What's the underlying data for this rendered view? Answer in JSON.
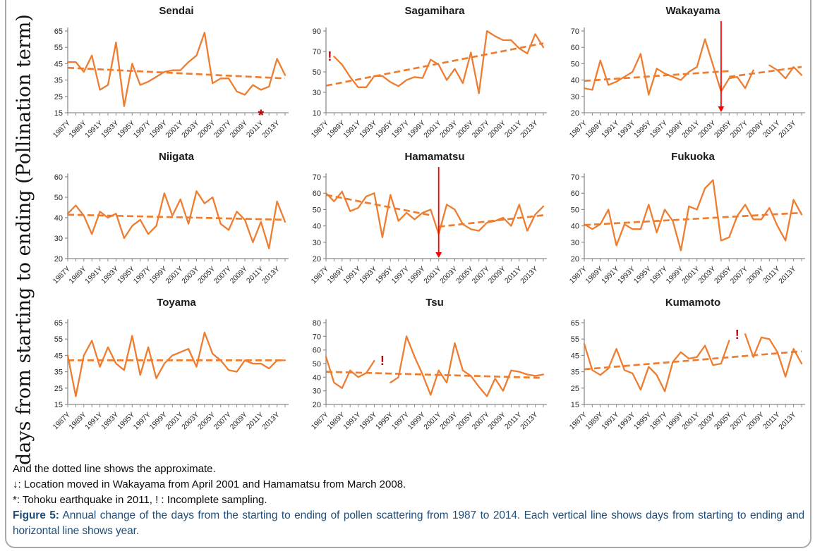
{
  "page": {
    "ylabel": "days from starting to ending (Pollination term)",
    "notes": [
      "And the dotted line shows the approximate.",
      "↓: Location moved in Wakayama from April 2001 and Hamamatsu from March 2008.",
      "*: Tohoku earthquake in 2011, ! : Incomplete sampling."
    ],
    "figure_label": "Figure 5:",
    "figure_caption": " Annual change of the days from the starting to ending of pollen scattering from 1987 to 2014. Each vertical line shows days from starting to ending and horizontal line shows year."
  },
  "colors": {
    "series": "#ED7D31",
    "trend": "#ED7D31",
    "arrow": "#FF0000",
    "mark": "#C00000",
    "axis": "#8C8C8C",
    "tick_text": "#262626",
    "title_text": "#1a1a1a",
    "caption_blue": "#1F4E79"
  },
  "years": {
    "start": 1987,
    "end": 2014,
    "label_suffix": "Y",
    "label_step": 2,
    "last_label": 2013
  },
  "chart_data": [
    {
      "type": "line",
      "title": "Sendai",
      "ylim": [
        15,
        65
      ],
      "ytick_step": 10,
      "values": [
        46,
        46,
        40,
        50,
        29,
        32,
        58,
        19,
        45,
        32,
        34,
        37,
        40,
        41,
        41,
        46,
        50,
        64,
        33,
        36,
        36,
        28,
        26,
        32,
        29,
        31,
        48,
        38
      ],
      "trend": [
        [
          1987,
          42.5,
          2014,
          36
        ]
      ],
      "marks": [
        {
          "type": "asterisk",
          "year": 2011
        }
      ]
    },
    {
      "type": "line",
      "title": "Sagamihara",
      "ylim": [
        10,
        90
      ],
      "ytick_step": 20,
      "values": [
        null,
        65,
        57,
        45,
        35,
        35,
        46,
        46,
        40,
        36,
        42,
        45,
        44,
        62,
        57,
        42,
        53,
        39,
        69,
        29,
        90,
        85,
        81,
        81,
        73,
        68,
        87,
        74
      ],
      "trend": [
        [
          1987,
          36.5,
          2014,
          78
        ]
      ],
      "marks": [
        {
          "type": "exclaim",
          "year": 1988,
          "value": 61,
          "dx": -6
        }
      ]
    },
    {
      "type": "line",
      "title": "Wakayama",
      "ylim": [
        20,
        70
      ],
      "ytick_step": 10,
      "values": [
        35,
        34,
        52,
        37,
        39,
        42,
        45,
        56,
        31,
        47,
        44,
        42,
        40,
        45,
        48,
        65,
        49,
        33,
        41,
        42,
        35,
        46,
        null,
        49,
        46,
        41,
        48,
        43
      ],
      "trend": [
        [
          1987,
          39.5,
          2005,
          45.5
        ],
        [
          2005,
          42,
          2014,
          48
        ]
      ],
      "marks": [
        {
          "type": "arrow",
          "year": 2004
        }
      ]
    },
    {
      "type": "line",
      "title": "Niigata",
      "ylim": [
        20,
        60
      ],
      "ytick_step": 10,
      "values": [
        42,
        46,
        41,
        32,
        43,
        40,
        42,
        30,
        36,
        39,
        32,
        36,
        52,
        41,
        49,
        37,
        53,
        47,
        50,
        37,
        34,
        43,
        39,
        28,
        38,
        25,
        48,
        38
      ],
      "trend": [
        [
          1987,
          41.5,
          2014,
          39
        ]
      ],
      "marks": []
    },
    {
      "type": "line",
      "title": "Hamamatsu",
      "ylim": [
        20,
        70
      ],
      "ytick_step": 10,
      "values": [
        60,
        55,
        61,
        49,
        51,
        58,
        60,
        33,
        59,
        43,
        48,
        44,
        48,
        50,
        35,
        53,
        50,
        41,
        38,
        37,
        42,
        43,
        45,
        40,
        53,
        37,
        47,
        52
      ],
      "trend": [
        [
          1987,
          59,
          2000,
          46.5
        ],
        [
          2001,
          39.5,
          2014,
          46.5
        ]
      ],
      "marks": [
        {
          "type": "arrow",
          "year": 2001
        }
      ]
    },
    {
      "type": "line",
      "title": "Fukuoka",
      "ylim": [
        20,
        70
      ],
      "ytick_step": 10,
      "values": [
        41,
        38,
        41,
        50,
        28,
        41,
        38,
        38,
        53,
        36,
        50,
        43,
        25,
        52,
        50,
        63,
        68,
        31,
        33,
        46,
        53,
        44,
        44,
        51,
        40,
        31,
        56,
        47
      ],
      "trend": [
        [
          1987,
          40.5,
          2014,
          48
        ]
      ],
      "marks": []
    },
    {
      "type": "line",
      "title": "Toyama",
      "ylim": [
        15,
        65
      ],
      "ytick_step": 10,
      "values": [
        45,
        20,
        45,
        54,
        38,
        50,
        40,
        36,
        57,
        33,
        50,
        31,
        40,
        45,
        47,
        49,
        38,
        59,
        46,
        42,
        36,
        35,
        42,
        40,
        40,
        37,
        42,
        42
      ],
      "trend": [
        [
          1987,
          42,
          2014,
          42
        ]
      ],
      "marks": []
    },
    {
      "type": "line",
      "title": "Tsu",
      "ylim": [
        20,
        80
      ],
      "ytick_step": 10,
      "values": [
        55,
        36,
        32,
        45,
        40,
        43,
        52,
        null,
        36,
        40,
        70,
        55,
        42,
        27,
        45,
        36,
        65,
        45,
        41,
        33,
        26,
        39,
        30,
        45,
        44,
        42,
        41,
        42
      ],
      "trend": [
        [
          1987,
          44,
          2014,
          39.5
        ]
      ],
      "marks": [
        {
          "type": "exclaim",
          "year": 1994,
          "value": 49
        }
      ]
    },
    {
      "type": "line",
      "title": "Kumamoto",
      "ylim": [
        15,
        65
      ],
      "ytick_step": 10,
      "values": [
        52,
        36,
        33,
        37,
        49,
        36,
        34,
        24,
        38,
        33,
        23,
        41,
        47,
        43,
        44,
        51,
        39,
        40,
        54,
        null,
        58,
        44,
        56,
        55,
        47,
        32,
        49,
        40
      ],
      "trend": [
        [
          1987,
          36.5,
          2014,
          47.5
        ]
      ],
      "marks": [
        {
          "type": "exclaim",
          "year": 2006,
          "value": 55
        }
      ]
    }
  ]
}
